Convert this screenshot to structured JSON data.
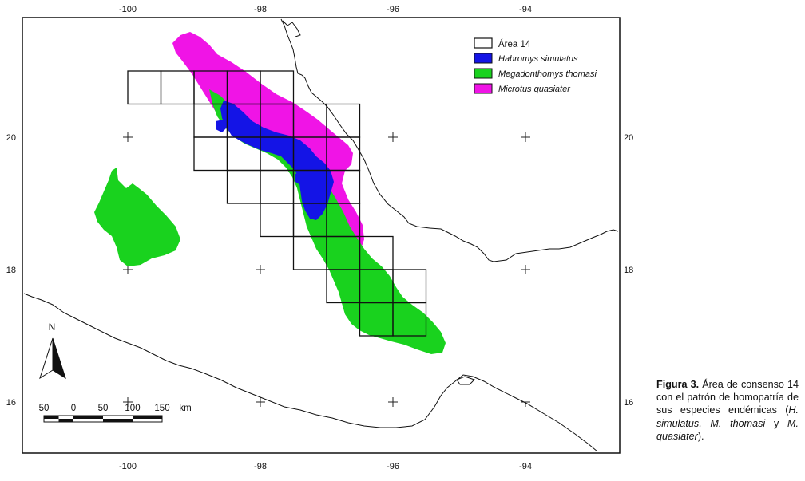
{
  "map": {
    "top_ticks": [
      "-100",
      "-98",
      "-96",
      "-94"
    ],
    "bottom_ticks": [
      "-100",
      "-98",
      "-96",
      "-94"
    ],
    "left_ticks": [
      "20",
      "18",
      "16"
    ],
    "right_ticks": [
      "20",
      "18",
      "16"
    ],
    "north_label": "N",
    "scale_labels": [
      "50",
      "0",
      "50",
      "100",
      "150",
      "km"
    ]
  },
  "legend": {
    "items": [
      {
        "label": "Área 14",
        "color": "#ffffff",
        "italic": false
      },
      {
        "label": "Habromys simulatus",
        "color": "#1414e6",
        "italic": true
      },
      {
        "label": "Megadonthomys thomasi",
        "color": "#19d21e",
        "italic": true
      },
      {
        "label": "Microtus quasiater",
        "color": "#f014e6",
        "italic": true
      }
    ]
  },
  "caption": {
    "bold": "Figura 3.",
    "text_1": " Área de consenso 14 con el patrón de homopatría de sus especies endémicas (",
    "italic_1": "H. simulatus, M. thomasi",
    "text_2": " y ",
    "italic_2": "M. quasiater",
    "text_3": ")."
  }
}
